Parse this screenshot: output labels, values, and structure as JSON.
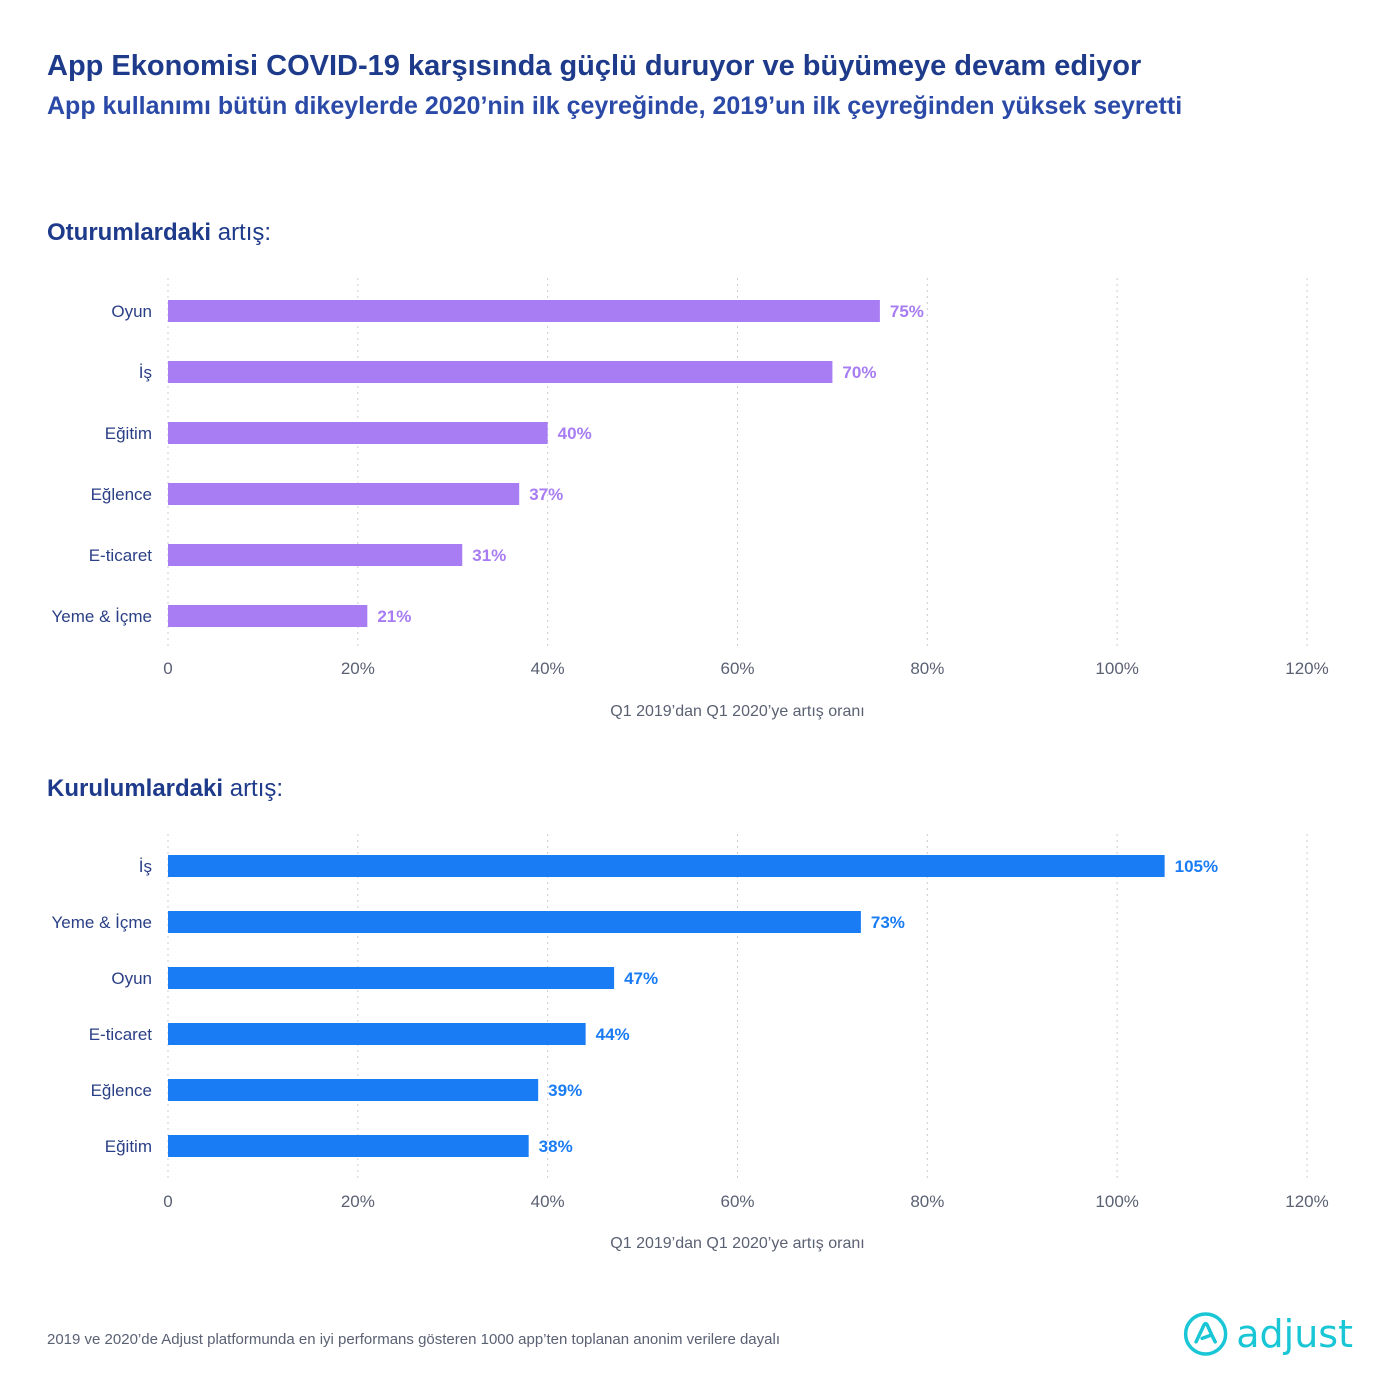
{
  "header": {
    "title": "App Ekonomisi COVID-19 karşısında güçlü duruyor ve büyümeye devam ediyor",
    "subtitle": "App kullanımı bütün dikeylerde 2020’nin ilk çeyreğinde, 2019’un ilk çeyreğinden yüksek seyretti"
  },
  "colors": {
    "sessions_bar": "#a87cf2",
    "installs_bar": "#1a7cf5",
    "title": "#1e3a8a",
    "logo": "#18c6d6"
  },
  "chart_data": [
    {
      "type": "bar",
      "orientation": "horizontal",
      "title_bold": "Oturumlardaki",
      "title_rest": " artış:",
      "categories": [
        "Oyun",
        "İş",
        "Eğitim",
        "Eğlence",
        "E-ticaret",
        "Yeme & İçme"
      ],
      "values": [
        75,
        70,
        40,
        37,
        31,
        21
      ],
      "value_labels": [
        "75%",
        "70%",
        "40%",
        "37%",
        "31%",
        "21%"
      ],
      "xlabel": "Q1 2019’dan Q1 2020’ye artış oranı",
      "xlim": [
        0,
        120
      ],
      "ticks": [
        0,
        20,
        40,
        60,
        80,
        100,
        120
      ],
      "tick_labels": [
        "0",
        "20%",
        "40%",
        "60%",
        "80%",
        "100%",
        "120%"
      ],
      "grid": "vertical-dotted"
    },
    {
      "type": "bar",
      "orientation": "horizontal",
      "title_bold": "Kurulumlardaki",
      "title_rest": " artış:",
      "categories": [
        "İş",
        "Yeme & İçme",
        "Oyun",
        "E-ticaret",
        "Eğlence",
        "Eğitim"
      ],
      "values": [
        105,
        73,
        47,
        44,
        39,
        38
      ],
      "value_labels": [
        "105%",
        "73%",
        "47%",
        "44%",
        "39%",
        "38%"
      ],
      "xlabel": "Q1 2019’dan Q1 2020’ye artış oranı",
      "xlim": [
        0,
        120
      ],
      "ticks": [
        0,
        20,
        40,
        60,
        80,
        100,
        120
      ],
      "tick_labels": [
        "0",
        "20%",
        "40%",
        "60%",
        "80%",
        "100%",
        "120%"
      ],
      "grid": "vertical-dotted"
    }
  ],
  "footer": {
    "note": "2019 ve 2020’de Adjust platformunda en iyi performans gösteren 1000 app’ten toplanan anonim verilere dayalı"
  },
  "logo": {
    "wordmark": "adjust",
    "icon": "adjust-logo-icon"
  }
}
